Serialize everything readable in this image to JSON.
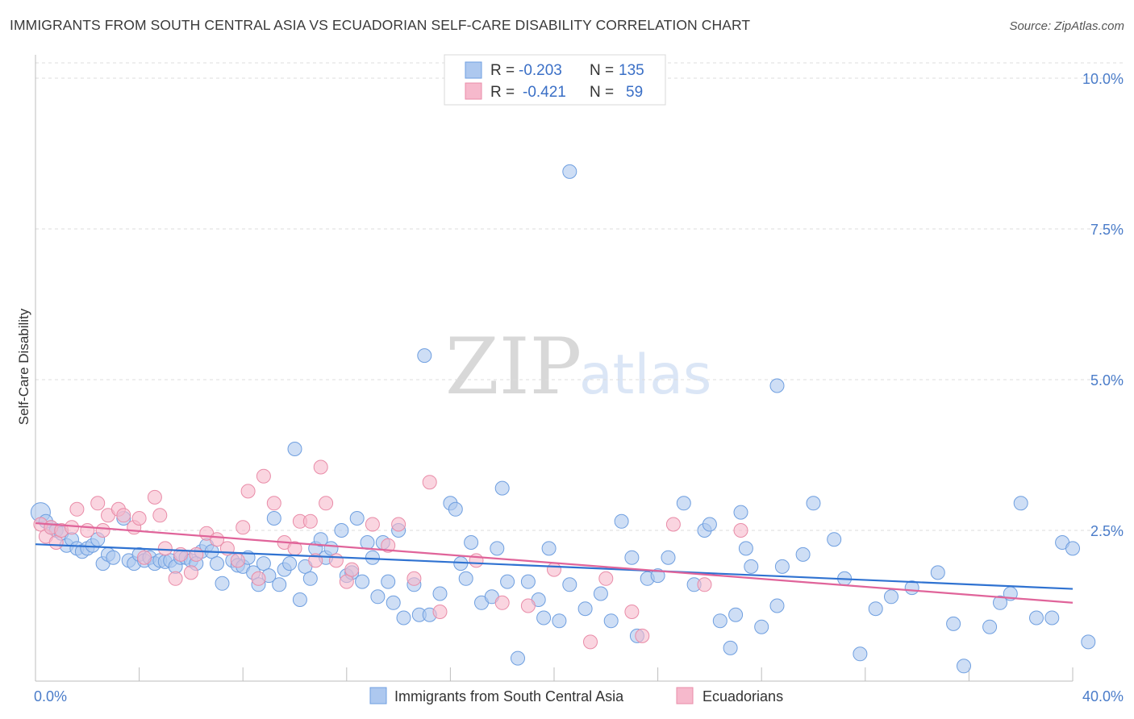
{
  "title": "IMMIGRANTS FROM SOUTH CENTRAL ASIA VS ECUADORIAN SELF-CARE DISABILITY CORRELATION CHART",
  "source": "Source: ZipAtlas.com",
  "watermark": {
    "zip": "ZIP",
    "atlas": "atlas"
  },
  "legend": {
    "r_label": "R =",
    "n_label": "N =",
    "rows": [
      {
        "name": "Immigrants from South Central Asia",
        "r": "-0.203",
        "n": "135",
        "fill": "#adc8ef",
        "stroke": "#6f9fe0"
      },
      {
        "name": "Ecuadorians",
        "r": "-0.421",
        "n": "59",
        "fill": "#f6b9cc",
        "stroke": "#e98ca8"
      }
    ]
  },
  "chart_data": {
    "type": "scatter",
    "title": "IMMIGRANTS FROM SOUTH CENTRAL ASIA VS ECUADORIAN SELF-CARE DISABILITY CORRELATION CHART",
    "xlabel": "",
    "ylabel": "Self-Care Disability",
    "xlim": [
      0,
      40
    ],
    "ylim": [
      0,
      10.5
    ],
    "x_tick_labels": [
      "0.0%",
      "40.0%"
    ],
    "y_ticks": [
      2.5,
      5.0,
      7.5,
      10.0
    ],
    "y_tick_labels": [
      "2.5%",
      "5.0%",
      "7.5%",
      "10.0%"
    ],
    "grid": "horizontal dashed",
    "legend_placement": "top-center",
    "series": [
      {
        "name": "Immigrants from South Central Asia",
        "color": "#6f9fe0",
        "fill": "#adc8ef",
        "trend": {
          "x": [
            0,
            40
          ],
          "y": [
            2.27,
            1.53
          ]
        },
        "points": [
          [
            0.2,
            2.8
          ],
          [
            0.4,
            2.65
          ],
          [
            0.6,
            2.55
          ],
          [
            0.8,
            2.5
          ],
          [
            1.0,
            2.45
          ],
          [
            1.2,
            2.25
          ],
          [
            1.4,
            2.35
          ],
          [
            1.6,
            2.2
          ],
          [
            1.8,
            2.15
          ],
          [
            2.0,
            2.2
          ],
          [
            2.2,
            2.25
          ],
          [
            2.4,
            2.35
          ],
          [
            2.6,
            1.95
          ],
          [
            2.8,
            2.1
          ],
          [
            3.0,
            2.05
          ],
          [
            3.4,
            2.7
          ],
          [
            3.6,
            2.0
          ],
          [
            3.8,
            1.95
          ],
          [
            4.0,
            2.1
          ],
          [
            4.2,
            2.0
          ],
          [
            4.4,
            2.05
          ],
          [
            4.6,
            1.95
          ],
          [
            4.8,
            2.0
          ],
          [
            5.0,
            1.98
          ],
          [
            5.2,
            2.0
          ],
          [
            5.4,
            1.9
          ],
          [
            5.6,
            2.05
          ],
          [
            5.8,
            2.05
          ],
          [
            6.0,
            2.0
          ],
          [
            6.2,
            1.95
          ],
          [
            6.4,
            2.15
          ],
          [
            6.6,
            2.25
          ],
          [
            6.8,
            2.15
          ],
          [
            7.0,
            1.95
          ],
          [
            7.2,
            1.62
          ],
          [
            7.6,
            2.0
          ],
          [
            7.8,
            1.92
          ],
          [
            8.0,
            1.9
          ],
          [
            8.2,
            2.05
          ],
          [
            8.4,
            1.8
          ],
          [
            8.6,
            1.6
          ],
          [
            8.8,
            1.95
          ],
          [
            9.0,
            1.75
          ],
          [
            9.2,
            2.7
          ],
          [
            9.4,
            1.6
          ],
          [
            9.6,
            1.85
          ],
          [
            9.8,
            1.95
          ],
          [
            10.0,
            3.85
          ],
          [
            10.2,
            1.35
          ],
          [
            10.4,
            1.9
          ],
          [
            10.6,
            1.7
          ],
          [
            10.8,
            2.2
          ],
          [
            11.0,
            2.35
          ],
          [
            11.2,
            2.05
          ],
          [
            11.4,
            2.2
          ],
          [
            11.8,
            2.5
          ],
          [
            12.0,
            1.75
          ],
          [
            12.2,
            1.8
          ],
          [
            12.4,
            2.7
          ],
          [
            12.6,
            1.65
          ],
          [
            12.8,
            2.3
          ],
          [
            13.0,
            2.05
          ],
          [
            13.2,
            1.4
          ],
          [
            13.4,
            2.3
          ],
          [
            13.6,
            1.65
          ],
          [
            13.8,
            1.3
          ],
          [
            14.0,
            2.5
          ],
          [
            14.2,
            1.05
          ],
          [
            14.6,
            1.6
          ],
          [
            14.8,
            1.1
          ],
          [
            15.2,
            1.1
          ],
          [
            15.6,
            1.45
          ],
          [
            15.0,
            5.4
          ],
          [
            16.0,
            2.95
          ],
          [
            16.2,
            2.85
          ],
          [
            16.4,
            1.95
          ],
          [
            16.6,
            1.7
          ],
          [
            16.8,
            2.3
          ],
          [
            17.2,
            1.3
          ],
          [
            17.6,
            1.4
          ],
          [
            17.8,
            2.2
          ],
          [
            18.2,
            1.65
          ],
          [
            18.0,
            3.2
          ],
          [
            18.6,
            0.38
          ],
          [
            19.0,
            1.65
          ],
          [
            19.4,
            1.35
          ],
          [
            19.6,
            1.05
          ],
          [
            19.8,
            2.2
          ],
          [
            20.2,
            1.0
          ],
          [
            20.6,
            1.6
          ],
          [
            21.2,
            1.2
          ],
          [
            21.8,
            1.45
          ],
          [
            22.2,
            1.0
          ],
          [
            22.6,
            2.65
          ],
          [
            23.0,
            2.05
          ],
          [
            23.2,
            0.75
          ],
          [
            23.6,
            1.7
          ],
          [
            24.0,
            1.75
          ],
          [
            24.4,
            2.05
          ],
          [
            20.6,
            8.45
          ],
          [
            25.0,
            2.95
          ],
          [
            25.4,
            1.6
          ],
          [
            25.8,
            2.5
          ],
          [
            26.0,
            2.6
          ],
          [
            26.8,
            0.55
          ],
          [
            26.4,
            1.0
          ],
          [
            27.0,
            1.1
          ],
          [
            27.2,
            2.8
          ],
          [
            27.6,
            1.9
          ],
          [
            27.4,
            2.2
          ],
          [
            28.0,
            0.9
          ],
          [
            28.6,
            1.25
          ],
          [
            28.8,
            1.9
          ],
          [
            29.6,
            2.1
          ],
          [
            30.0,
            2.95
          ],
          [
            28.6,
            4.9
          ],
          [
            30.8,
            2.35
          ],
          [
            31.2,
            1.7
          ],
          [
            31.8,
            0.45
          ],
          [
            32.4,
            1.2
          ],
          [
            33.0,
            1.4
          ],
          [
            33.8,
            1.55
          ],
          [
            34.8,
            1.8
          ],
          [
            35.4,
            0.95
          ],
          [
            35.8,
            0.25
          ],
          [
            36.8,
            0.9
          ],
          [
            37.2,
            1.3
          ],
          [
            37.6,
            1.45
          ],
          [
            38.0,
            2.95
          ],
          [
            38.6,
            1.05
          ],
          [
            39.2,
            1.05
          ],
          [
            39.6,
            2.3
          ],
          [
            40.0,
            2.2
          ],
          [
            40.6,
            0.65
          ]
        ]
      },
      {
        "name": "Ecuadorians",
        "color": "#e0649a",
        "fill": "#f6b9cc",
        "trend": {
          "x": [
            0,
            40
          ],
          "y": [
            2.62,
            1.3
          ]
        },
        "points": [
          [
            0.2,
            2.6
          ],
          [
            0.4,
            2.4
          ],
          [
            0.6,
            2.55
          ],
          [
            0.8,
            2.3
          ],
          [
            1.0,
            2.5
          ],
          [
            1.4,
            2.55
          ],
          [
            1.6,
            2.85
          ],
          [
            2.0,
            2.5
          ],
          [
            2.4,
            2.95
          ],
          [
            2.6,
            2.5
          ],
          [
            2.8,
            2.75
          ],
          [
            3.2,
            2.85
          ],
          [
            3.4,
            2.75
          ],
          [
            3.8,
            2.55
          ],
          [
            4.0,
            2.7
          ],
          [
            4.2,
            2.05
          ],
          [
            4.6,
            3.05
          ],
          [
            4.8,
            2.75
          ],
          [
            5.0,
            2.2
          ],
          [
            5.4,
            1.7
          ],
          [
            5.6,
            2.1
          ],
          [
            6.0,
            1.8
          ],
          [
            6.2,
            2.1
          ],
          [
            6.6,
            2.45
          ],
          [
            7.0,
            2.35
          ],
          [
            7.4,
            2.2
          ],
          [
            7.8,
            2.0
          ],
          [
            8.0,
            2.55
          ],
          [
            8.2,
            3.15
          ],
          [
            8.6,
            1.7
          ],
          [
            8.8,
            3.4
          ],
          [
            9.2,
            2.95
          ],
          [
            9.6,
            2.3
          ],
          [
            10.0,
            2.2
          ],
          [
            10.2,
            2.65
          ],
          [
            10.6,
            2.65
          ],
          [
            10.8,
            2.0
          ],
          [
            11.0,
            3.55
          ],
          [
            11.2,
            2.95
          ],
          [
            11.6,
            2.0
          ],
          [
            12.0,
            1.65
          ],
          [
            12.2,
            1.85
          ],
          [
            13.0,
            2.6
          ],
          [
            13.6,
            2.25
          ],
          [
            14.0,
            2.6
          ],
          [
            14.6,
            1.7
          ],
          [
            15.2,
            3.3
          ],
          [
            15.6,
            1.15
          ],
          [
            17.0,
            2.0
          ],
          [
            18.0,
            1.3
          ],
          [
            19.0,
            1.25
          ],
          [
            20.0,
            1.85
          ],
          [
            21.4,
            0.65
          ],
          [
            22.0,
            1.7
          ],
          [
            23.0,
            1.15
          ],
          [
            23.4,
            0.75
          ],
          [
            24.6,
            2.6
          ],
          [
            25.8,
            1.6
          ],
          [
            27.2,
            2.5
          ]
        ]
      }
    ]
  }
}
